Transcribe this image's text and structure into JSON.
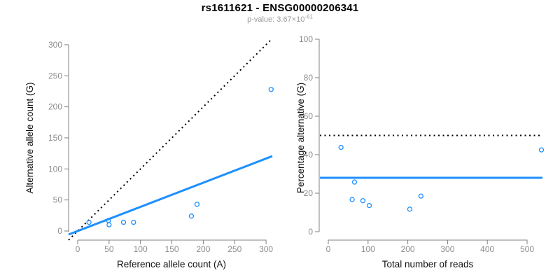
{
  "title": "rs1611621 - ENSG00000206341",
  "subtitle": {
    "label_text": "p-value: 3.67×10",
    "exponent": "-61"
  },
  "colors": {
    "accent_blue": "#1E90FF",
    "line_black": "#000000",
    "axis_gray": "#808080",
    "tick_label_gray": "#8c8c8c",
    "axis_title_color": "#111111",
    "title_color": "#000000",
    "subtitle_gray": "#9b9b9b",
    "background": "#ffffff"
  },
  "chart_data": [
    {
      "type": "scatter",
      "name": "allele-counts-scatter",
      "title": "",
      "xlabel": "Reference allele count (A)",
      "ylabel": "Alternative allele count (G)",
      "xlim": [
        0,
        310
      ],
      "ylim": [
        0,
        310
      ],
      "xticks": [
        0,
        50,
        100,
        150,
        200,
        250,
        300
      ],
      "yticks": [
        0,
        50,
        100,
        150,
        200,
        250,
        300
      ],
      "grid": false,
      "legend": "none",
      "marker": "open-circle",
      "points": [
        [
          18,
          14
        ],
        [
          49,
          17
        ],
        [
          50,
          10
        ],
        [
          73,
          14
        ],
        [
          89,
          14
        ],
        [
          181,
          24
        ],
        [
          190,
          43
        ],
        [
          308,
          228
        ]
      ],
      "lines": [
        {
          "name": "identity-line",
          "style": "dotted",
          "color_key": "line_black",
          "slope": 1,
          "intercept": 0
        },
        {
          "name": "fit-line",
          "style": "solid",
          "color_key": "accent_blue",
          "slope": 0.389,
          "intercept": 0
        }
      ]
    },
    {
      "type": "scatter",
      "name": "percentage-scatter",
      "title": "",
      "xlabel": "Total number of reads",
      "ylabel": "Percentage alternative (G)",
      "xlim": [
        0,
        540
      ],
      "ylim": [
        0,
        100
      ],
      "xticks": [
        0,
        100,
        200,
        300,
        400,
        500
      ],
      "yticks": [
        0,
        20,
        40,
        60,
        80,
        100
      ],
      "grid": false,
      "legend": "none",
      "marker": "open-circle",
      "points": [
        [
          32,
          43.8
        ],
        [
          66,
          25.8
        ],
        [
          60,
          16.7
        ],
        [
          87,
          16.1
        ],
        [
          103,
          13.6
        ],
        [
          205,
          11.7
        ],
        [
          233,
          18.5
        ],
        [
          536,
          42.5
        ]
      ],
      "lines": [
        {
          "name": "reference-50pct-line",
          "style": "dotted",
          "color_key": "line_black",
          "hline": 50
        },
        {
          "name": "mean-percentage-line",
          "style": "solid",
          "color_key": "accent_blue",
          "hline": 28
        }
      ]
    }
  ]
}
